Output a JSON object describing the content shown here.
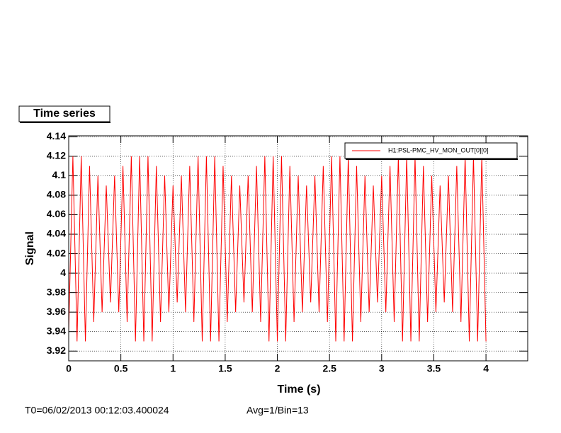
{
  "chart_data": {
    "type": "line",
    "title": "Time series",
    "xlabel": "Time (s)",
    "ylabel": "Signal",
    "annotations": [
      "T0=06/02/2013 00:12:03.400024",
      "Avg=1/Bin=13"
    ],
    "xlim": [
      0,
      4.4
    ],
    "ylim": [
      3.91,
      4.141
    ],
    "xticks": [
      0,
      0.5,
      1,
      1.5,
      2,
      2.5,
      3,
      3.5,
      4
    ],
    "yticks": [
      3.92,
      3.94,
      3.96,
      3.98,
      4,
      4.02,
      4.04,
      4.06,
      4.08,
      4.1,
      4.12,
      4.14
    ],
    "grid": true,
    "legend": "upper right",
    "x": [
      0,
      0.04,
      0.08,
      0.12,
      0.16,
      0.2,
      0.24,
      0.28,
      0.32,
      0.36,
      0.4,
      0.44,
      0.48,
      0.52,
      0.56,
      0.6,
      0.64,
      0.68,
      0.72,
      0.76,
      0.8,
      0.84,
      0.88,
      0.92,
      0.96,
      1,
      1.04,
      1.08,
      1.12,
      1.16,
      1.2,
      1.24,
      1.28,
      1.32,
      1.36,
      1.4,
      1.44,
      1.48,
      1.52,
      1.56,
      1.6,
      1.64,
      1.68,
      1.72,
      1.76,
      1.8,
      1.84,
      1.88,
      1.92,
      1.96,
      2,
      2.04,
      2.08,
      2.12,
      2.16,
      2.2,
      2.24,
      2.28,
      2.32,
      2.36,
      2.4,
      2.44,
      2.48,
      2.52,
      2.56,
      2.6,
      2.64,
      2.68,
      2.72,
      2.76,
      2.8,
      2.84,
      2.88,
      2.92,
      2.96,
      3,
      3.04,
      3.08,
      3.12,
      3.16,
      3.2,
      3.24,
      3.28,
      3.32,
      3.36,
      3.4,
      3.44,
      3.48,
      3.52,
      3.56,
      3.6,
      3.64,
      3.68,
      3.72,
      3.76,
      3.8,
      3.84,
      3.88,
      3.92,
      3.96,
      4
    ],
    "series": [
      {
        "name": "H1:PSL-PMC_HV_MON_OUT[0][0]",
        "color": "#ff0000",
        "values": [
          3.94,
          4.12,
          3.93,
          4.12,
          3.93,
          4.11,
          3.95,
          4.1,
          3.96,
          4.09,
          3.97,
          4.1,
          3.96,
          4.11,
          3.95,
          4.12,
          3.93,
          4.12,
          3.93,
          4.12,
          3.93,
          4.11,
          3.95,
          4.1,
          3.96,
          4.09,
          3.97,
          4.1,
          3.96,
          4.11,
          3.95,
          4.12,
          3.93,
          4.12,
          3.93,
          4.12,
          3.93,
          4.11,
          3.95,
          4.1,
          3.96,
          4.09,
          3.97,
          4.1,
          3.96,
          4.11,
          3.95,
          4.12,
          3.93,
          4.12,
          3.93,
          4.12,
          3.93,
          4.11,
          3.95,
          4.1,
          3.96,
          4.09,
          3.97,
          4.1,
          3.96,
          4.11,
          3.95,
          4.12,
          3.93,
          4.12,
          3.93,
          4.12,
          3.93,
          4.11,
          3.95,
          4.1,
          3.96,
          4.09,
          3.97,
          4.1,
          3.96,
          4.11,
          3.95,
          4.12,
          3.93,
          4.12,
          3.93,
          4.12,
          3.93,
          4.11,
          3.95,
          4.1,
          3.96,
          4.09,
          3.97,
          4.1,
          3.96,
          4.11,
          3.95,
          4.12,
          3.93,
          4.12,
          3.93,
          4.12,
          3.93
        ]
      }
    ]
  }
}
